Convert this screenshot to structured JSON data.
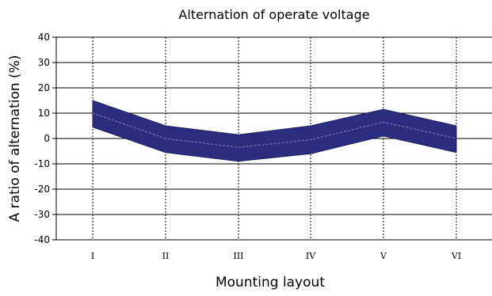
{
  "chart_data": {
    "type": "area",
    "title": "Alternation of operate voltage",
    "xlabel": "Mounting layout",
    "ylabel": "A ratio of alternation (%)",
    "categories": [
      "I",
      "II",
      "III",
      "IV",
      "V",
      "VI"
    ],
    "ylim": [
      -40,
      40
    ],
    "yticks": [
      40,
      30,
      20,
      10,
      0,
      -10,
      -20,
      -30,
      -40
    ],
    "grid": {
      "horizontal": true,
      "vertical_dotted": true
    },
    "series": [
      {
        "role": "upper",
        "values": [
          15,
          5,
          1.5,
          5,
          11.5,
          5
        ]
      },
      {
        "role": "mean",
        "values": [
          10,
          0,
          -3.5,
          -0.5,
          6.5,
          0
        ]
      },
      {
        "role": "lower",
        "values": [
          4.5,
          -5.5,
          -9,
          -6,
          1,
          -5.5
        ]
      }
    ],
    "colors": {
      "band": "#2b2d80",
      "band_edge": "#1b1d5e",
      "mean_line": "#7f80b0",
      "grid": "#000000"
    }
  }
}
